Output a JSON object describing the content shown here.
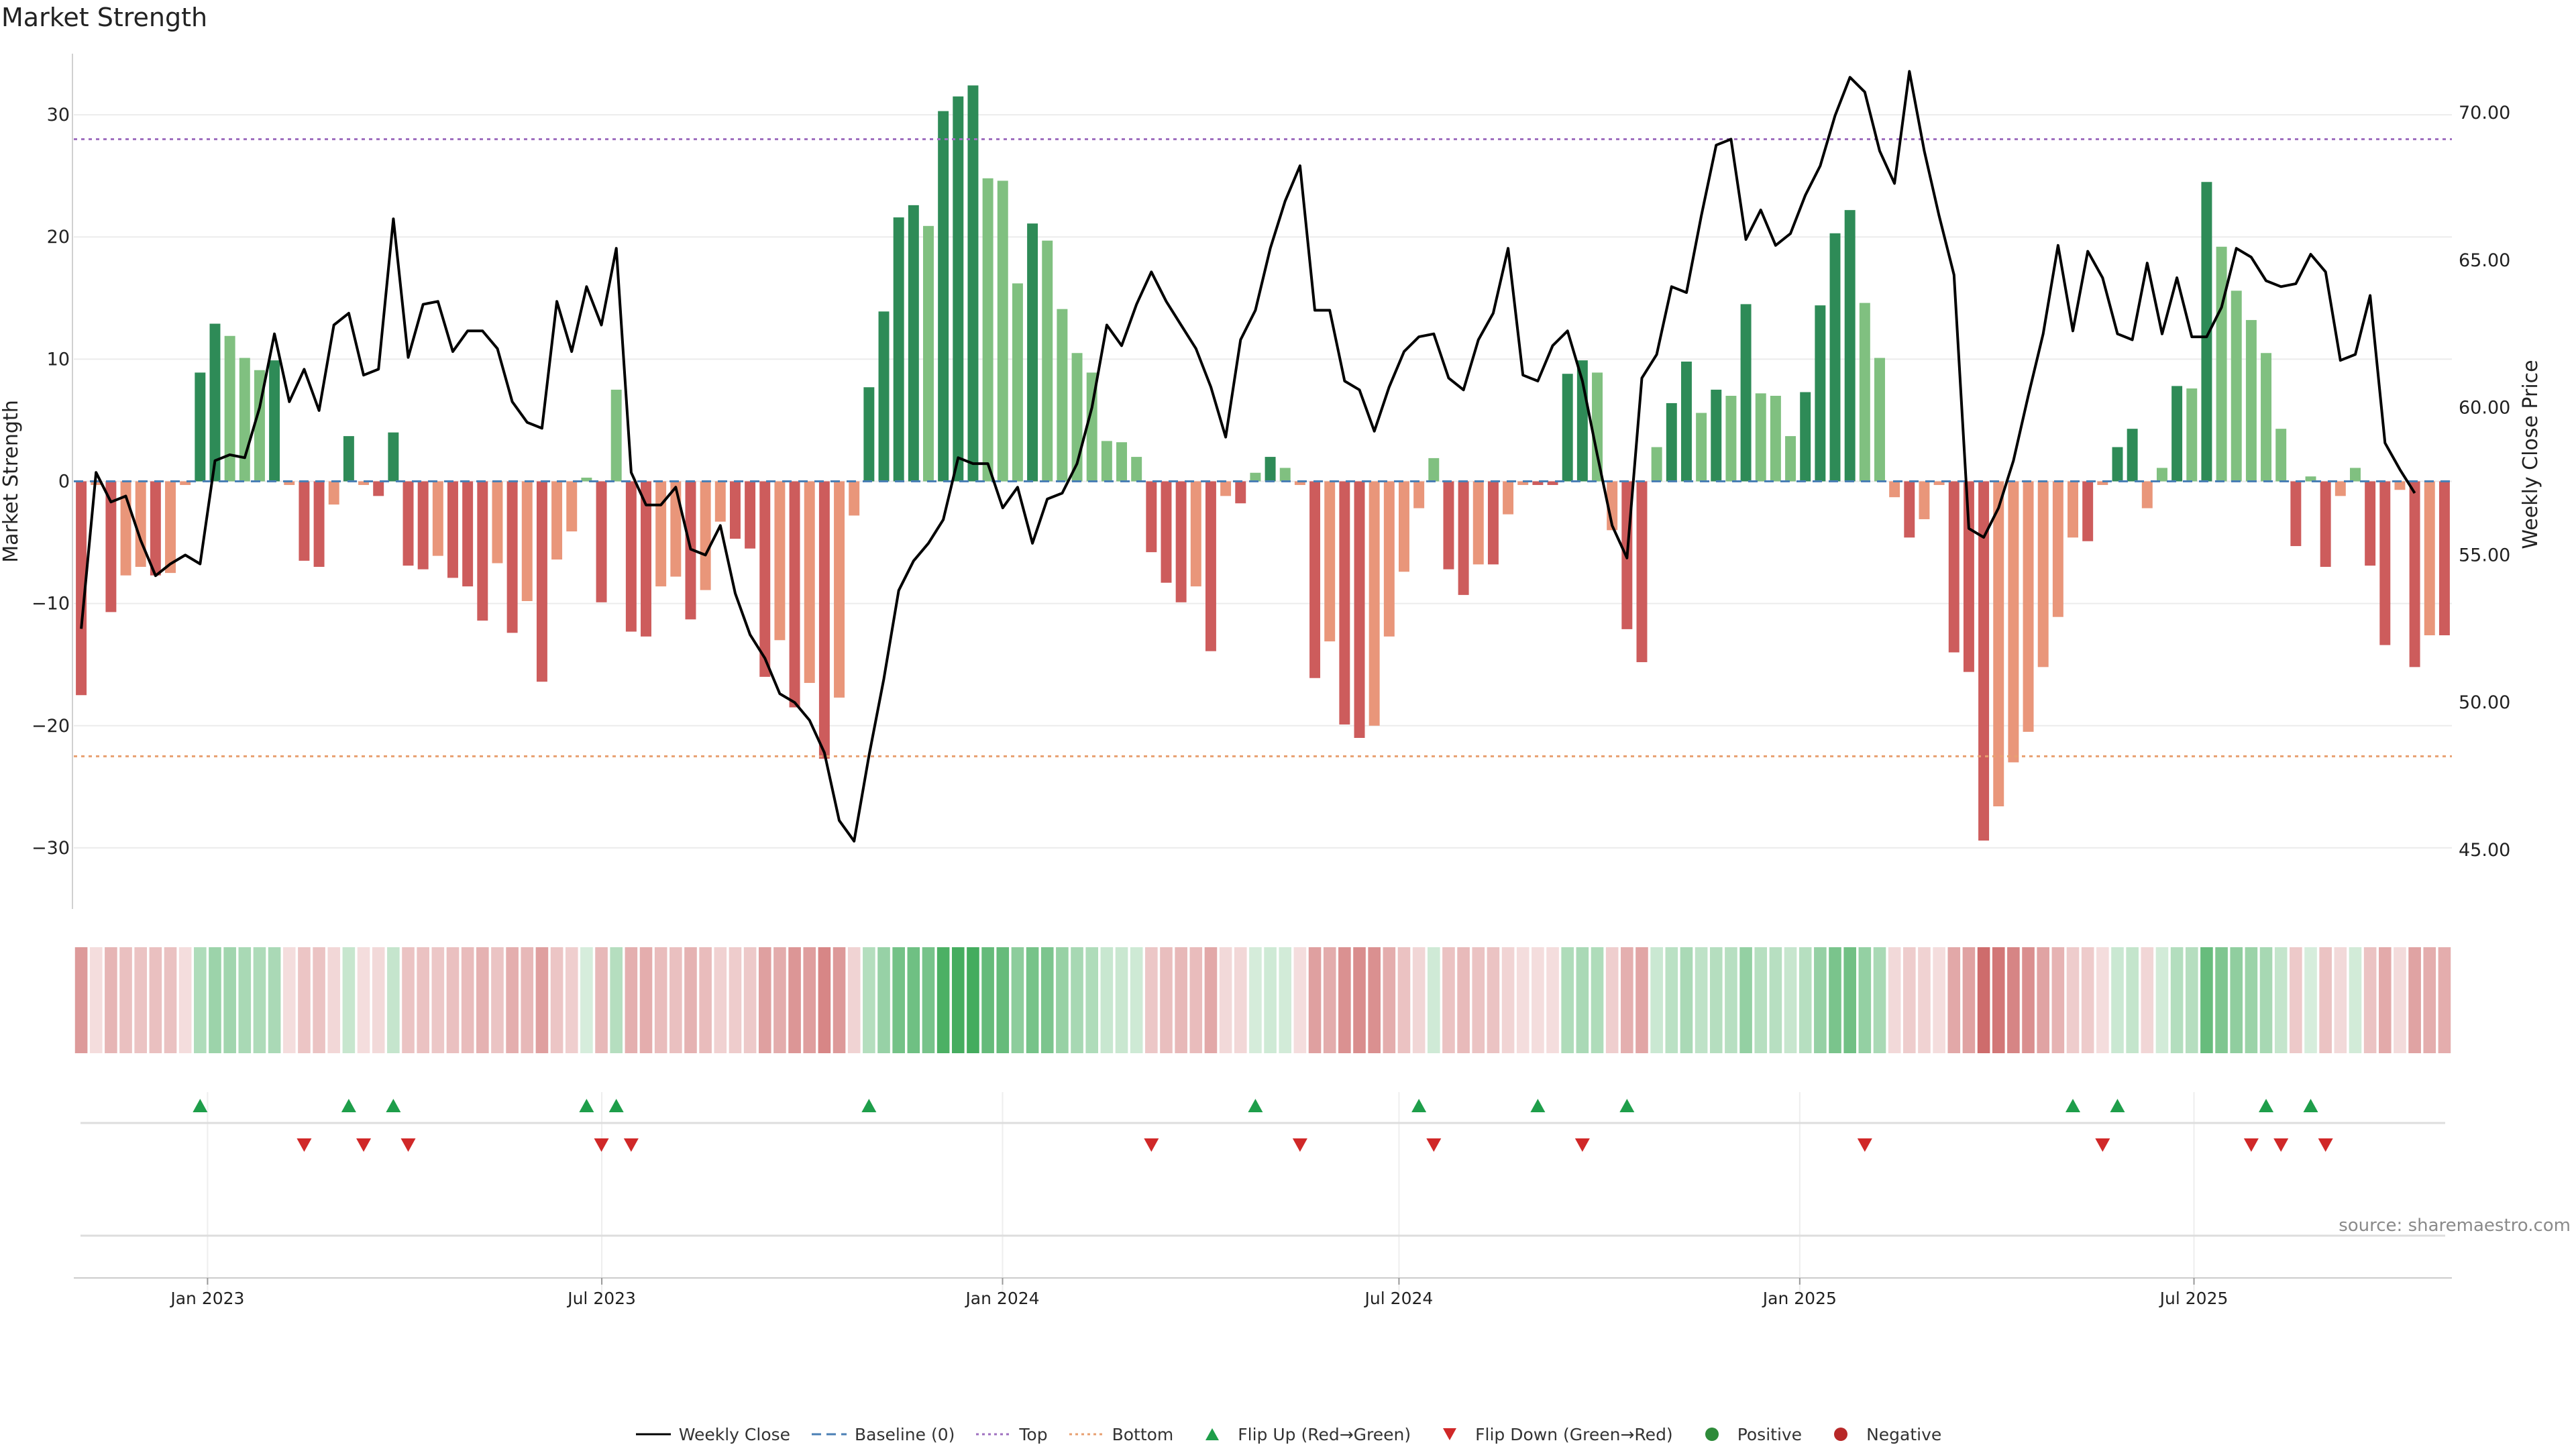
{
  "page": {
    "title": "Market Strength",
    "source": "source: sharemaestro.com"
  },
  "legend": [
    {
      "label": "Weekly Close",
      "kind": "solid-line",
      "color": "#000000"
    },
    {
      "label": "Baseline (0)",
      "kind": "dashed-line",
      "color": "#4a7fb5"
    },
    {
      "label": "Top",
      "kind": "dotted-line",
      "color": "#a070c0"
    },
    {
      "label": "Bottom",
      "kind": "dotted-line",
      "color": "#e8a070"
    },
    {
      "label": "Flip Up (Red→Green)",
      "kind": "triangle-up",
      "color": "#1e9e4a"
    },
    {
      "label": "Flip Down (Green→Red)",
      "kind": "triangle-down",
      "color": "#d02828"
    },
    {
      "label": "Positive",
      "kind": "dot",
      "color": "#2e8b3a"
    },
    {
      "label": "Negative",
      "kind": "dot",
      "color": "#b82828"
    }
  ],
  "colors": {
    "pos_strong": "#2e8b57",
    "pos_weak": "#80c080",
    "neg_strong": "#cd5c5c",
    "neg_weak": "#e9967a",
    "line": "#000000",
    "top": "#a070c0",
    "bottom": "#e8a070",
    "baseline": "#4a7fb5",
    "flip_up": "#1e9e4a",
    "flip_down": "#d02828"
  },
  "chart_data": {
    "type": "bar",
    "title": "Market Strength",
    "ylabel": "Market Strength",
    "y2label": "Weekly Close Price",
    "ylim": [
      -35,
      35
    ],
    "y2lim": [
      43.0,
      72.0
    ],
    "yticks": [
      -30,
      -20,
      -10,
      0,
      10,
      20,
      30
    ],
    "y2ticks": [
      "45.00",
      "50.00",
      "55.00",
      "60.00",
      "65.00",
      "70.00"
    ],
    "top_threshold": 28,
    "bottom_threshold": -22.5,
    "date_range": [
      "2022-11-04",
      "2025-10-24"
    ],
    "xticks": [
      {
        "label": "Jan 2023",
        "date": "2023-01-01"
      },
      {
        "label": "Jul 2023",
        "date": "2023-07-01"
      },
      {
        "label": "Jan 2024",
        "date": "2024-01-01"
      },
      {
        "label": "Jul 2024",
        "date": "2024-07-01"
      },
      {
        "label": "Jan 2025",
        "date": "2025-01-01"
      },
      {
        "label": "Jul 2025",
        "date": "2025-07-01"
      }
    ],
    "series": [
      {
        "name": "Market Strength",
        "values": [
          -17.5,
          -0.3,
          -10.7,
          -7.7,
          -7,
          -7.7,
          -7.5,
          -0.3,
          8.9,
          12.9,
          11.9,
          10.1,
          9.1,
          9.9,
          -0.3,
          -6.5,
          -7,
          -1.9,
          3.7,
          -0.3,
          -1.2,
          4,
          -6.9,
          -7.2,
          -6.1,
          -7.9,
          -8.6,
          -11.4,
          -6.7,
          -12.4,
          -9.8,
          -16.4,
          -6.4,
          -4.1,
          0.3,
          -9.9,
          7.5,
          -12.3,
          -12.7,
          -8.6,
          -7.8,
          -11.3,
          -8.9,
          -3.3,
          -4.7,
          -5.5,
          -16,
          -13,
          -18.5,
          -16.5,
          -22.7,
          -17.7,
          -2.8,
          7.7,
          13.9,
          21.6,
          22.6,
          20.9,
          30.3,
          31.5,
          32.4,
          24.8,
          24.6,
          16.2,
          21.1,
          19.7,
          14.1,
          10.5,
          8.9,
          3.3,
          3.2,
          2,
          -5.8,
          -8.3,
          -9.9,
          -8.6,
          -13.9,
          -1.2,
          -1.8,
          0.7,
          2,
          1.1,
          -0.3,
          -16.1,
          -13.1,
          -19.9,
          -21,
          -20,
          -12.7,
          -7.4,
          -2.2,
          1.9,
          -7.2,
          -9.3,
          -6.8,
          -6.8,
          -2.7,
          -0.3,
          -0.3,
          -0.3,
          8.8,
          9.9,
          8.9,
          -4,
          -12.1,
          -14.8,
          2.8,
          6.4,
          9.8,
          5.6,
          7.5,
          7,
          14.5,
          7.2,
          7,
          3.7,
          7.3,
          14.4,
          20.3,
          22.2,
          14.6,
          10.1,
          -1.3,
          -4.6,
          -3.1,
          -0.3,
          -14,
          -15.6,
          -29.4,
          -26.6,
          -23,
          -20.5,
          -15.2,
          -11.1,
          -4.6,
          -4.9,
          -0.3,
          2.8,
          4.3,
          -2.2,
          1.1,
          7.8,
          7.6,
          24.5,
          19.2,
          15.6,
          13.2,
          10.5,
          4.3,
          -5.3,
          0.4,
          -7,
          -1.2,
          1.1,
          -6.9,
          -13.4,
          -0.7,
          -15.2,
          -12.6,
          -12.6
        ]
      },
      {
        "name": "Weekly Close",
        "values": [
          52.5,
          57.8,
          56.8,
          57,
          55.5,
          54.3,
          54.7,
          55,
          54.7,
          58.2,
          58.4,
          58.3,
          60,
          62.5,
          60.2,
          61.3,
          59.9,
          62.8,
          63.2,
          61.1,
          61.3,
          66.4,
          61.7,
          63.5,
          63.6,
          61.9,
          62.6,
          62.6,
          62,
          60.2,
          59.5,
          59.3,
          63.6,
          61.9,
          64.1,
          62.8,
          65.4,
          57.8,
          56.7,
          56.7,
          57.3,
          55.2,
          55,
          56,
          53.7,
          52.3,
          51.5,
          50.3,
          50,
          49.4,
          48.3,
          46,
          45.3,
          48.2,
          50.8,
          53.8,
          54.8,
          55.4,
          56.2,
          58.3,
          58.1,
          58.1,
          56.6,
          57.3,
          55.4,
          56.9,
          57.1,
          58.1,
          60,
          62.8,
          62.1,
          63.5,
          64.6,
          63.6,
          62.8,
          62,
          60.7,
          59,
          62.3,
          63.3,
          65.4,
          67,
          68.2,
          63.3,
          63.3,
          60.9,
          60.6,
          59.2,
          60.7,
          61.9,
          62.4,
          62.5,
          61,
          60.6,
          62.3,
          63.2,
          65.4,
          61.1,
          60.9,
          62.1,
          62.6,
          60.9,
          58.4,
          56,
          54.9,
          61,
          61.8,
          64.1,
          63.9,
          66.5,
          68.9,
          69.1,
          65.7,
          66.7,
          65.5,
          65.9,
          67.2,
          68.2,
          69.9,
          71.2,
          70.7,
          68.7,
          67.6,
          71.4,
          68.7,
          66.5,
          64.5,
          55.9,
          55.6,
          56.6,
          58.2,
          60.4,
          62.5,
          65.5,
          62.6,
          65.3,
          64.4,
          62.5,
          62.3,
          64.9,
          62.5,
          64.4,
          62.4,
          62.4,
          63.4,
          65.4,
          65.1,
          64.3,
          64.1,
          64.2,
          65.2,
          64.6,
          61.6,
          61.8,
          63.8,
          58.8,
          57.9,
          57.1
        ]
      }
    ],
    "flip_up_indices": [
      8,
      18,
      21,
      34,
      36,
      53,
      79,
      90,
      98,
      104,
      134,
      137,
      147,
      150
    ],
    "flip_down_indices": [
      15,
      19,
      22,
      35,
      37,
      72,
      82,
      91,
      101,
      120,
      136,
      146,
      148,
      151
    ]
  }
}
